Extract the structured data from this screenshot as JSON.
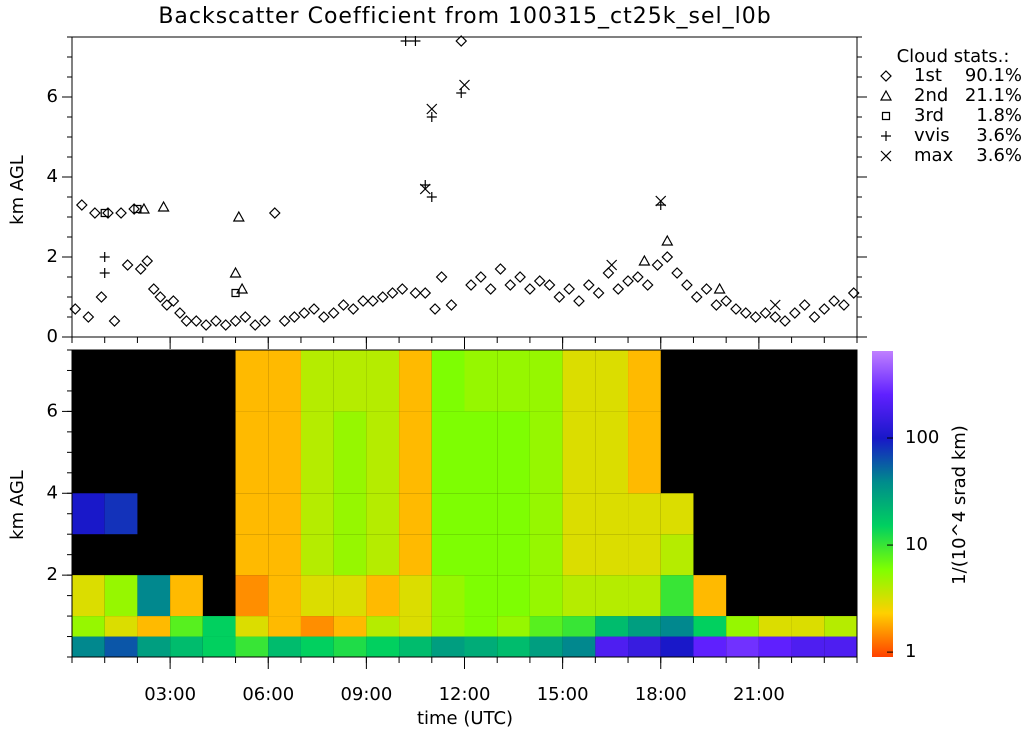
{
  "chart_data": [
    {
      "type": "scatter",
      "title": "Backscatter Coefficient from 100315_ct25k_sel_l0b",
      "ylabel": "km AGL",
      "legend_title": "Cloud stats.:",
      "xlim": [
        0,
        24
      ],
      "xticks": [
        3,
        6,
        9,
        12,
        15,
        18,
        21
      ],
      "ylim": [
        0,
        7.5
      ],
      "yticks": [
        0,
        2,
        4,
        6
      ],
      "color": "#000000",
      "series": [
        {
          "name": "1st",
          "share": "90.1%",
          "marker": "diamond",
          "x": [
            0.1,
            0.3,
            0.5,
            0.7,
            0.9,
            1.1,
            1.3,
            1.5,
            1.7,
            1.9,
            2.1,
            2.3,
            2.5,
            2.7,
            2.9,
            3.1,
            3.3,
            3.5,
            3.8,
            4.1,
            4.4,
            4.7,
            5.0,
            5.3,
            5.6,
            5.9,
            6.2,
            6.5,
            6.8,
            7.1,
            7.4,
            7.7,
            8.0,
            8.3,
            8.6,
            8.9,
            9.2,
            9.5,
            9.8,
            10.1,
            10.5,
            10.8,
            11.1,
            11.3,
            11.6,
            11.9,
            12.2,
            12.5,
            12.8,
            13.1,
            13.4,
            13.7,
            14.0,
            14.3,
            14.6,
            14.9,
            15.2,
            15.5,
            15.8,
            16.1,
            16.4,
            16.7,
            17.0,
            17.3,
            17.6,
            17.9,
            18.2,
            18.5,
            18.8,
            19.1,
            19.4,
            19.7,
            20.0,
            20.3,
            20.6,
            20.9,
            21.2,
            21.5,
            21.8,
            22.1,
            22.4,
            22.7,
            23.0,
            23.3,
            23.6,
            23.9
          ],
          "values": [
            0.7,
            3.3,
            0.5,
            3.1,
            1.0,
            3.1,
            0.4,
            3.1,
            1.8,
            3.2,
            1.7,
            1.9,
            1.2,
            1.0,
            0.8,
            0.9,
            0.6,
            0.4,
            0.4,
            0.3,
            0.4,
            0.3,
            0.4,
            0.5,
            0.3,
            0.4,
            3.1,
            0.4,
            0.5,
            0.6,
            0.7,
            0.5,
            0.6,
            0.8,
            0.7,
            0.9,
            0.9,
            1.0,
            1.1,
            1.2,
            1.1,
            1.1,
            0.7,
            1.5,
            0.8,
            7.4,
            1.3,
            1.5,
            1.2,
            1.7,
            1.3,
            1.5,
            1.2,
            1.4,
            1.3,
            1.0,
            1.2,
            0.9,
            1.3,
            1.1,
            1.6,
            1.2,
            1.4,
            1.5,
            1.3,
            1.8,
            2.0,
            1.6,
            1.3,
            1.0,
            1.2,
            0.8,
            0.9,
            0.7,
            0.6,
            0.5,
            0.6,
            0.5,
            0.4,
            0.6,
            0.8,
            0.5,
            0.7,
            0.9,
            0.8,
            1.1
          ]
        },
        {
          "name": "2nd",
          "share": "21.1%",
          "marker": "triangle",
          "x": [
            2.2,
            2.8,
            5.0,
            5.1,
            5.2,
            17.5,
            18.2,
            19.8
          ],
          "values": [
            3.2,
            3.25,
            1.6,
            3.0,
            1.2,
            1.9,
            2.4,
            1.2
          ]
        },
        {
          "name": "3rd",
          "share": "1.8%",
          "marker": "square",
          "x": [
            1.0,
            2.0,
            5.0
          ],
          "values": [
            3.1,
            3.2,
            1.1
          ]
        },
        {
          "name": "vvis",
          "share": "3.6%",
          "marker": "plus",
          "x": [
            1.0,
            1.0,
            10.2,
            10.5,
            10.8,
            11.0,
            11.0,
            11.9,
            18.0
          ],
          "values": [
            2.0,
            1.6,
            7.4,
            7.4,
            3.8,
            5.5,
            3.5,
            6.1,
            3.3
          ]
        },
        {
          "name": "max",
          "share": "3.6%",
          "marker": "cross",
          "x": [
            11.0,
            12.0,
            10.8,
            18.0,
            16.5,
            21.5
          ],
          "values": [
            5.7,
            6.3,
            3.7,
            3.4,
            1.8,
            0.8
          ]
        }
      ]
    },
    {
      "type": "heatmap",
      "xlabel": "time (UTC)",
      "ylabel": "km AGL",
      "colorbar_label": "1/(10^4 srad km)",
      "xlim": [
        0,
        24
      ],
      "xticks": [
        {
          "value": 3,
          "label": "03:00"
        },
        {
          "value": 6,
          "label": "06:00"
        },
        {
          "value": 9,
          "label": "09:00"
        },
        {
          "value": 12,
          "label": "12:00"
        },
        {
          "value": 15,
          "label": "15:00"
        },
        {
          "value": 18,
          "label": "18:00"
        },
        {
          "value": 21,
          "label": "21:00"
        }
      ],
      "ylim": [
        0,
        7.5
      ],
      "yticks": [
        2,
        4,
        6
      ],
      "log_scale_z": true,
      "zlim": [
        0.9,
        650
      ],
      "zticks": [
        1,
        10,
        100
      ],
      "background": "#000000",
      "colormap": [
        "#ff4000",
        "#ffd000",
        "#80ff00",
        "#00d060",
        "#008c8c",
        "#1818c8",
        "#6020ff",
        "#c080ff"
      ],
      "x_edges": [
        0,
        1,
        2,
        3,
        4,
        5,
        6,
        7,
        8,
        9,
        10,
        11,
        12,
        13,
        14,
        15,
        16,
        17,
        18,
        19,
        20,
        21,
        22,
        23,
        24
      ],
      "y_edges": [
        0,
        0.5,
        1,
        2,
        3,
        4,
        6,
        7.5
      ],
      "z": [
        [
          40,
          60,
          30,
          20,
          15,
          10,
          20,
          15,
          12,
          15,
          20,
          30,
          25,
          20,
          30,
          40,
          200,
          150,
          100,
          250,
          300,
          250,
          200,
          200
        ],
        [
          5,
          3,
          2,
          8,
          15,
          3,
          2,
          1.5,
          2,
          4,
          3,
          5,
          6,
          5,
          8,
          10,
          20,
          30,
          40,
          15,
          5,
          3,
          3,
          4
        ],
        [
          3,
          5,
          40,
          2,
          null,
          1.5,
          2,
          3,
          3,
          2,
          3,
          5,
          6,
          6,
          5,
          4,
          4,
          4,
          10,
          2,
          null,
          null,
          null,
          null
        ],
        [
          null,
          null,
          null,
          null,
          null,
          2,
          2,
          4,
          5,
          4,
          2,
          6,
          6,
          6,
          5,
          3,
          3,
          3,
          4,
          null,
          null,
          null,
          null,
          null
        ],
        [
          100,
          80,
          null,
          null,
          null,
          2,
          2,
          4,
          5,
          4,
          2,
          6,
          6,
          6,
          5,
          3,
          3,
          3,
          3,
          null,
          null,
          null,
          null,
          null
        ],
        [
          null,
          null,
          null,
          null,
          null,
          2,
          2,
          4,
          5,
          4,
          2,
          6,
          6,
          6,
          5,
          3,
          3,
          2,
          null,
          null,
          null,
          null,
          null,
          null
        ],
        [
          null,
          null,
          null,
          null,
          null,
          2,
          2,
          4,
          4,
          4,
          2,
          6,
          5,
          5,
          5,
          3,
          3,
          2,
          null,
          null,
          null,
          null,
          null,
          null
        ]
      ]
    }
  ]
}
